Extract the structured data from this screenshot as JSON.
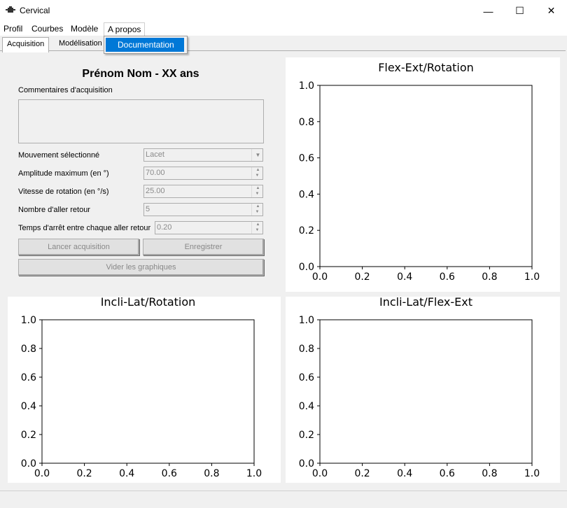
{
  "window": {
    "title": "Cervical",
    "minimize_glyph": "—",
    "maximize_glyph": "☐",
    "close_glyph": "✕"
  },
  "menu": [
    "Profil",
    "Courbes",
    "Modèle",
    "A propos"
  ],
  "dropdown": {
    "item": "Documentation"
  },
  "tabs": [
    "Acquisition",
    "Modélisation"
  ],
  "form": {
    "patient_name": "Prénom Nom - XX ans",
    "comments_label": "Commentaires d'acquisition",
    "movement_label": "Mouvement sélectionné",
    "movement_value": "Lacet",
    "amplitude_label": "Amplitude maximum (en °)",
    "amplitude_value": "70.00",
    "speed_label": "Vitesse de rotation (en °/s)",
    "speed_value": "25.00",
    "cycles_label": "Nombre d'aller retour",
    "cycles_value": "5",
    "pause_label": "Temps d'arrêt entre chaque aller retour",
    "pause_value": "0.20",
    "start_button": "Lancer acquisition",
    "save_button": "Enregistrer",
    "clear_button": "Vider les graphiques"
  },
  "plots": [
    {
      "title": "Flex-Ext/Rotation"
    },
    {
      "title": "Incli-Lat/Rotation"
    },
    {
      "title": "Incli-Lat/Flex-Ext"
    }
  ],
  "axis_ticks": [
    "0.0",
    "0.2",
    "0.4",
    "0.6",
    "0.8",
    "1.0"
  ],
  "colors": {
    "menu_highlight": "#0078d7",
    "plot_background": "#ffffff",
    "window_background": "#f0f0f0"
  },
  "icons": {
    "app": "app-icon",
    "minimize": "minimize-icon",
    "maximize": "maximize-icon",
    "close": "close-icon",
    "spin": "spin-arrows-icon",
    "combo": "chevron-down-icon"
  }
}
